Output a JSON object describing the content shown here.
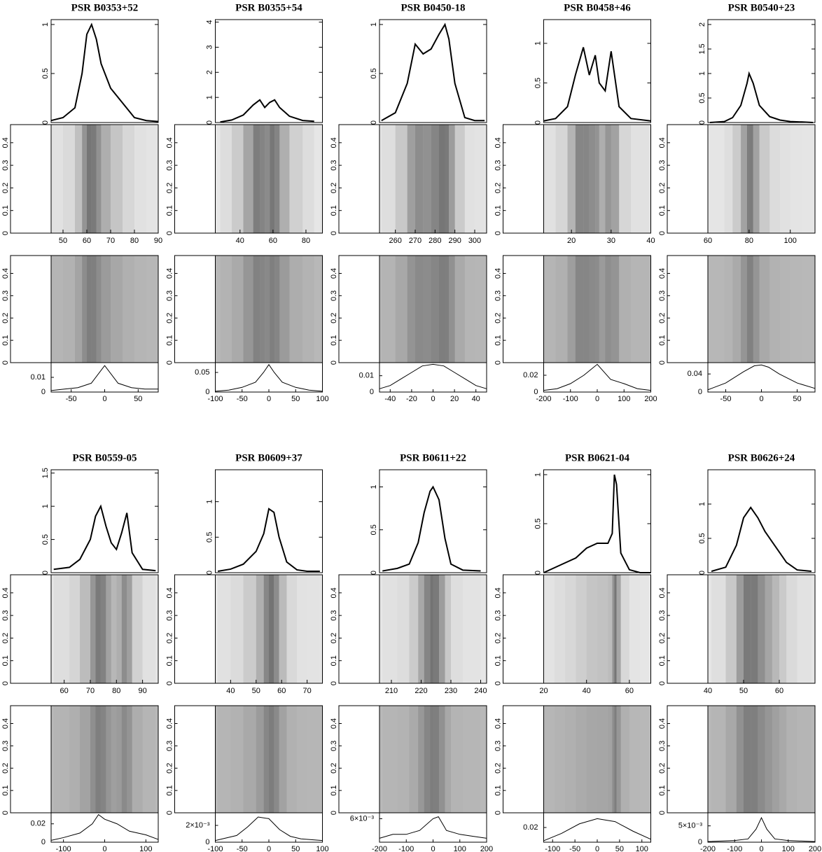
{
  "chart_data": [
    {
      "type": "line",
      "title": "PSR B0353+52",
      "x": [
        45,
        50,
        55,
        58,
        60,
        62,
        64,
        66,
        70,
        75,
        80,
        85,
        90
      ],
      "values": [
        0.02,
        0.05,
        0.15,
        0.5,
        0.9,
        1,
        0.85,
        0.6,
        0.35,
        0.2,
        0.05,
        0.02,
        0.01
      ],
      "xlim": [
        45,
        90
      ],
      "xticks": [
        50,
        60,
        70,
        80,
        90
      ],
      "ylim": [
        0,
        1.05
      ],
      "yticks": [
        0,
        0.5,
        1
      ],
      "side_ylim": [
        0,
        0.48
      ],
      "side_yticks": [
        0,
        0.1,
        0.2,
        0.3,
        0.4
      ],
      "lrfs_x": [
        -80,
        -60,
        -40,
        -20,
        0,
        20,
        40,
        60,
        80
      ],
      "lrfs_values": [
        0.001,
        0.002,
        0.003,
        0.006,
        0.018,
        0.006,
        0.003,
        0.002,
        0.002
      ],
      "lrfs_xlim": [
        -80,
        80
      ],
      "lrfs_xticks": [
        -50,
        0,
        50
      ],
      "lrfs_ylim": [
        0,
        0.02
      ],
      "lrfs_yticks": [
        0,
        0.01
      ]
    },
    {
      "type": "line",
      "title": "PSR B0355+54",
      "x": [
        28,
        35,
        42,
        48,
        52,
        55,
        58,
        61,
        64,
        70,
        78,
        85
      ],
      "values": [
        0.02,
        0.1,
        0.3,
        0.7,
        0.9,
        0.6,
        0.8,
        0.9,
        0.6,
        0.25,
        0.08,
        0.05
      ],
      "xlim": [
        25,
        90
      ],
      "xticks": [
        40,
        60,
        80
      ],
      "ylim": [
        0,
        4.1
      ],
      "yticks": [
        0,
        1,
        2,
        3,
        4
      ],
      "side_ylim": [
        0,
        0.48
      ],
      "side_yticks": [
        0,
        0.1,
        0.2,
        0.3,
        0.4
      ],
      "lrfs_x": [
        -100,
        -75,
        -50,
        -25,
        -10,
        0,
        10,
        25,
        50,
        75,
        100
      ],
      "lrfs_values": [
        0.002,
        0.005,
        0.012,
        0.025,
        0.05,
        0.07,
        0.05,
        0.025,
        0.012,
        0.005,
        0.002
      ],
      "lrfs_xlim": [
        -100,
        100
      ],
      "lrfs_xticks": [
        -100,
        -50,
        0,
        50,
        100
      ],
      "lrfs_ylim": [
        0,
        0.075
      ],
      "lrfs_yticks": [
        0,
        0.05
      ]
    },
    {
      "type": "line",
      "title": "PSR B0450-18",
      "x": [
        253,
        260,
        266,
        270,
        274,
        278,
        282,
        285,
        287,
        290,
        295,
        300,
        305
      ],
      "values": [
        0.02,
        0.1,
        0.4,
        0.8,
        0.7,
        0.75,
        0.9,
        1,
        0.85,
        0.4,
        0.05,
        0.02,
        0.02
      ],
      "xlim": [
        252,
        306
      ],
      "xticks": [
        260,
        270,
        280,
        290,
        300
      ],
      "ylim": [
        0,
        1.05
      ],
      "yticks": [
        0,
        0.5,
        1
      ],
      "side_ylim": [
        0,
        0.48
      ],
      "side_yticks": [
        0,
        0.1,
        0.2,
        0.3,
        0.4
      ],
      "lrfs_x": [
        -50,
        -40,
        -30,
        -20,
        -10,
        0,
        10,
        20,
        30,
        40,
        50
      ],
      "lrfs_values": [
        0.002,
        0.004,
        0.008,
        0.012,
        0.016,
        0.017,
        0.016,
        0.012,
        0.008,
        0.004,
        0.002
      ],
      "lrfs_xlim": [
        -50,
        50
      ],
      "lrfs_xticks": [
        -40,
        -20,
        0,
        20,
        40
      ],
      "lrfs_ylim": [
        0,
        0.018
      ],
      "lrfs_yticks": [
        0,
        0.01
      ]
    },
    {
      "type": "line",
      "title": "PSR B0458+46",
      "x": [
        13,
        16,
        19,
        21,
        23,
        24.5,
        26,
        27,
        28.5,
        30,
        32,
        35,
        40
      ],
      "values": [
        0.02,
        0.05,
        0.2,
        0.6,
        0.95,
        0.6,
        0.85,
        0.5,
        0.4,
        0.9,
        0.2,
        0.05,
        0.02
      ],
      "xlim": [
        13,
        40
      ],
      "xticks": [
        20,
        30,
        40
      ],
      "ylim": [
        0,
        1.3
      ],
      "yticks": [
        0,
        0.5,
        1
      ],
      "side_ylim": [
        0,
        0.48
      ],
      "side_yticks": [
        0,
        0.1,
        0.2,
        0.3,
        0.4
      ],
      "lrfs_x": [
        -200,
        -150,
        -100,
        -50,
        0,
        50,
        100,
        150,
        200
      ],
      "lrfs_values": [
        0.002,
        0.004,
        0.01,
        0.02,
        0.033,
        0.015,
        0.01,
        0.004,
        0.002
      ],
      "lrfs_xlim": [
        -200,
        200
      ],
      "lrfs_xticks": [
        -200,
        -100,
        0,
        100,
        200
      ],
      "lrfs_ylim": [
        0,
        0.035
      ],
      "lrfs_yticks": [
        0,
        0.02
      ]
    },
    {
      "type": "line",
      "title": "PSR B0540+23",
      "x": [
        61,
        68,
        72,
        76,
        79,
        80,
        82,
        85,
        90,
        95,
        100,
        106,
        111
      ],
      "values": [
        0,
        0.02,
        0.1,
        0.35,
        0.8,
        1,
        0.8,
        0.35,
        0.12,
        0.05,
        0.02,
        0.01,
        0
      ],
      "xlim": [
        60,
        112
      ],
      "xticks": [
        60,
        80,
        100
      ],
      "ylim": [
        0,
        2.1
      ],
      "yticks": [
        0,
        0.5,
        1,
        1.5,
        2
      ],
      "side_ylim": [
        0,
        0.48
      ],
      "side_yticks": [
        0,
        0.1,
        0.2,
        0.3,
        0.4
      ],
      "lrfs_x": [
        -75,
        -50,
        -25,
        -10,
        0,
        10,
        25,
        50,
        75
      ],
      "lrfs_values": [
        0.005,
        0.02,
        0.045,
        0.058,
        0.06,
        0.055,
        0.04,
        0.02,
        0.008
      ],
      "lrfs_xlim": [
        -75,
        75
      ],
      "lrfs_xticks": [
        -50,
        0,
        50
      ],
      "lrfs_ylim": [
        0,
        0.065
      ],
      "lrfs_yticks": [
        0,
        0.04
      ]
    },
    {
      "type": "line",
      "title": "PSR B0559-05",
      "x": [
        56,
        62,
        66,
        70,
        72,
        74,
        76,
        78,
        80,
        82,
        84,
        86,
        90,
        95
      ],
      "values": [
        0.05,
        0.08,
        0.2,
        0.5,
        0.85,
        1,
        0.7,
        0.45,
        0.35,
        0.6,
        0.9,
        0.3,
        0.05,
        0.03
      ],
      "xlim": [
        55,
        96
      ],
      "xticks": [
        60,
        70,
        80,
        90
      ],
      "ylim": [
        0,
        1.55
      ],
      "yticks": [
        0,
        0.5,
        1,
        1.5
      ],
      "side_ylim": [
        0,
        0.48
      ],
      "side_yticks": [
        0,
        0.1,
        0.2,
        0.3,
        0.4
      ],
      "lrfs_x": [
        -130,
        -100,
        -60,
        -30,
        -15,
        0,
        30,
        60,
        100,
        130
      ],
      "lrfs_values": [
        0.002,
        0.005,
        0.01,
        0.02,
        0.03,
        0.025,
        0.02,
        0.012,
        0.008,
        0.003
      ],
      "lrfs_xlim": [
        -130,
        130
      ],
      "lrfs_xticks": [
        -100,
        0,
        100
      ],
      "lrfs_ylim": [
        0,
        0.032
      ],
      "lrfs_yticks": [
        0,
        0.02
      ]
    },
    {
      "type": "line",
      "title": "PSR B0609+37",
      "x": [
        35,
        40,
        45,
        50,
        53,
        55,
        57,
        59,
        62,
        66,
        70,
        75
      ],
      "values": [
        0.02,
        0.05,
        0.12,
        0.3,
        0.55,
        0.9,
        0.85,
        0.5,
        0.15,
        0.04,
        0.02,
        0.02
      ],
      "xlim": [
        34,
        76
      ],
      "xticks": [
        40,
        50,
        60,
        70
      ],
      "ylim": [
        0,
        1.45
      ],
      "yticks": [
        0,
        0.5,
        1
      ],
      "side_ylim": [
        0,
        0.48
      ],
      "side_yticks": [
        0,
        0.1,
        0.2,
        0.3,
        0.4
      ],
      "lrfs_x": [
        -100,
        -60,
        -40,
        -20,
        0,
        20,
        40,
        60,
        100
      ],
      "lrfs_values": [
        0.0002,
        0.0008,
        0.0018,
        0.003,
        0.0028,
        0.0015,
        0.0007,
        0.0004,
        0.0002
      ],
      "lrfs_xlim": [
        -100,
        100
      ],
      "lrfs_xticks": [
        -100,
        -50,
        0,
        50,
        100
      ],
      "lrfs_ylim": [
        0,
        0.0035
      ],
      "lrfs_yticks": [
        0,
        {
          "value": 0.002,
          "label": "2×10⁻³"
        }
      ]
    },
    {
      "type": "line",
      "title": "PSR B0611+22",
      "x": [
        207,
        212,
        216,
        219,
        221,
        223,
        224,
        226,
        228,
        230,
        234,
        240
      ],
      "values": [
        0.02,
        0.05,
        0.1,
        0.35,
        0.7,
        0.95,
        1,
        0.85,
        0.4,
        0.1,
        0.03,
        0.02
      ],
      "xlim": [
        206,
        242
      ],
      "xticks": [
        210,
        220,
        230,
        240
      ],
      "ylim": [
        0,
        1.2
      ],
      "yticks": [
        0,
        0.5,
        1
      ],
      "side_ylim": [
        0,
        0.48
      ],
      "side_yticks": [
        0,
        0.1,
        0.2,
        0.3,
        0.4
      ],
      "lrfs_x": [
        -200,
        -150,
        -100,
        -50,
        0,
        20,
        50,
        100,
        150,
        200
      ],
      "lrfs_values": [
        0.001,
        0.002,
        0.002,
        0.003,
        0.006,
        0.0065,
        0.003,
        0.002,
        0.0015,
        0.001
      ],
      "lrfs_xlim": [
        -200,
        200
      ],
      "lrfs_xticks": [
        -200,
        -100,
        0,
        100,
        200
      ],
      "lrfs_ylim": [
        0,
        0.0075
      ],
      "lrfs_yticks": [
        {
          "value": 0.006,
          "label": "6×10⁻³"
        }
      ]
    },
    {
      "type": "line",
      "title": "PSR B0621-04",
      "x": [
        20,
        25,
        30,
        35,
        40,
        45,
        50,
        52,
        53,
        54,
        56,
        60,
        65,
        70
      ],
      "values": [
        0,
        0.05,
        0.1,
        0.15,
        0.25,
        0.3,
        0.3,
        0.4,
        1,
        0.9,
        0.2,
        0.03,
        0,
        0
      ],
      "xlim": [
        20,
        70
      ],
      "xticks": [
        20,
        40,
        60
      ],
      "ylim": [
        0,
        1.05
      ],
      "yticks": [
        0,
        0.5,
        1
      ],
      "side_ylim": [
        0,
        0.48
      ],
      "side_yticks": [
        0,
        0.1,
        0.2,
        0.3,
        0.4
      ],
      "lrfs_x": [
        -120,
        -80,
        -40,
        0,
        40,
        80,
        120
      ],
      "lrfs_values": [
        0.002,
        0.012,
        0.025,
        0.032,
        0.028,
        0.015,
        0.004
      ],
      "lrfs_xlim": [
        -120,
        120
      ],
      "lrfs_xticks": [
        -100,
        -50,
        0,
        50,
        100
      ],
      "lrfs_ylim": [
        0,
        0.04
      ],
      "lrfs_yticks": [
        0.02
      ]
    },
    {
      "type": "line",
      "title": "PSR B0626+24",
      "x": [
        41,
        45,
        48,
        50,
        52,
        54,
        56,
        58,
        60,
        62,
        65,
        69
      ],
      "values": [
        0.02,
        0.08,
        0.4,
        0.8,
        0.95,
        0.8,
        0.6,
        0.45,
        0.3,
        0.15,
        0.04,
        0.02
      ],
      "xlim": [
        40,
        70
      ],
      "xticks": [
        40,
        50,
        60
      ],
      "ylim": [
        0,
        1.5
      ],
      "yticks": [
        0,
        0.5,
        1
      ],
      "side_ylim": [
        0,
        0.48
      ],
      "side_yticks": [
        0,
        0.1,
        0.2,
        0.3,
        0.4
      ],
      "lrfs_x": [
        -200,
        -100,
        -50,
        -20,
        0,
        20,
        50,
        100,
        200
      ],
      "lrfs_values": [
        0.0002,
        0.0005,
        0.001,
        0.004,
        0.0075,
        0.004,
        0.001,
        0.0005,
        0.0002
      ],
      "lrfs_xlim": [
        -200,
        200
      ],
      "lrfs_xticks": [
        -200,
        -100,
        0,
        100,
        200
      ],
      "lrfs_ylim": [
        0,
        0.009
      ],
      "lrfs_yticks": [
        0,
        {
          "value": 0.005,
          "label": "5×10⁻³"
        }
      ]
    }
  ]
}
